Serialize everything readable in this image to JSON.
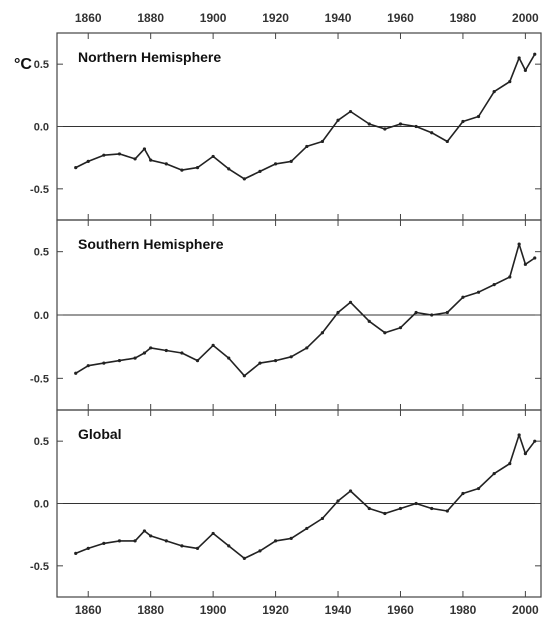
{
  "chart_data": {
    "type": "line",
    "unit": "°C",
    "x_ticks": [
      1860,
      1880,
      1900,
      1920,
      1940,
      1960,
      1980,
      2000
    ],
    "y_ticks": [
      "0.5",
      "0.0",
      "-0.5"
    ],
    "xlim": [
      1850,
      2005
    ],
    "ylim": [
      -0.75,
      0.75
    ],
    "panels": [
      {
        "title": "Northern Hemisphere",
        "series": {
          "x": [
            1856,
            1860,
            1865,
            1870,
            1875,
            1878,
            1880,
            1885,
            1890,
            1895,
            1900,
            1905,
            1910,
            1915,
            1920,
            1925,
            1930,
            1935,
            1940,
            1944,
            1950,
            1955,
            1960,
            1965,
            1970,
            1975,
            1980,
            1985,
            1990,
            1995,
            1998,
            2000,
            2003
          ],
          "y": [
            -0.33,
            -0.28,
            -0.23,
            -0.22,
            -0.26,
            -0.18,
            -0.27,
            -0.3,
            -0.35,
            -0.33,
            -0.24,
            -0.34,
            -0.42,
            -0.36,
            -0.3,
            -0.28,
            -0.16,
            -0.12,
            0.05,
            0.12,
            0.02,
            -0.02,
            0.02,
            0.0,
            -0.05,
            -0.12,
            0.04,
            0.08,
            0.28,
            0.36,
            0.55,
            0.45,
            0.58
          ]
        }
      },
      {
        "title": "Southern Hemisphere",
        "series": {
          "x": [
            1856,
            1860,
            1865,
            1870,
            1875,
            1878,
            1880,
            1885,
            1890,
            1895,
            1900,
            1905,
            1910,
            1915,
            1920,
            1925,
            1930,
            1935,
            1940,
            1944,
            1950,
            1955,
            1960,
            1965,
            1970,
            1975,
            1980,
            1985,
            1990,
            1995,
            1998,
            2000,
            2003
          ],
          "y": [
            -0.46,
            -0.4,
            -0.38,
            -0.36,
            -0.34,
            -0.3,
            -0.26,
            -0.28,
            -0.3,
            -0.36,
            -0.24,
            -0.34,
            -0.48,
            -0.38,
            -0.36,
            -0.33,
            -0.26,
            -0.14,
            0.02,
            0.1,
            -0.05,
            -0.14,
            -0.1,
            0.02,
            0.0,
            0.02,
            0.14,
            0.18,
            0.24,
            0.3,
            0.56,
            0.4,
            0.45
          ]
        }
      },
      {
        "title": "Global",
        "series": {
          "x": [
            1856,
            1860,
            1865,
            1870,
            1875,
            1878,
            1880,
            1885,
            1890,
            1895,
            1900,
            1905,
            1910,
            1915,
            1920,
            1925,
            1930,
            1935,
            1940,
            1944,
            1950,
            1955,
            1960,
            1965,
            1970,
            1975,
            1980,
            1985,
            1990,
            1995,
            1998,
            2000,
            2003
          ],
          "y": [
            -0.4,
            -0.36,
            -0.32,
            -0.3,
            -0.3,
            -0.22,
            -0.26,
            -0.3,
            -0.34,
            -0.36,
            -0.24,
            -0.34,
            -0.44,
            -0.38,
            -0.3,
            -0.28,
            -0.2,
            -0.12,
            0.02,
            0.1,
            -0.04,
            -0.08,
            -0.04,
            0.0,
            -0.04,
            -0.06,
            0.08,
            0.12,
            0.24,
            0.32,
            0.55,
            0.4,
            0.5
          ]
        }
      }
    ]
  }
}
